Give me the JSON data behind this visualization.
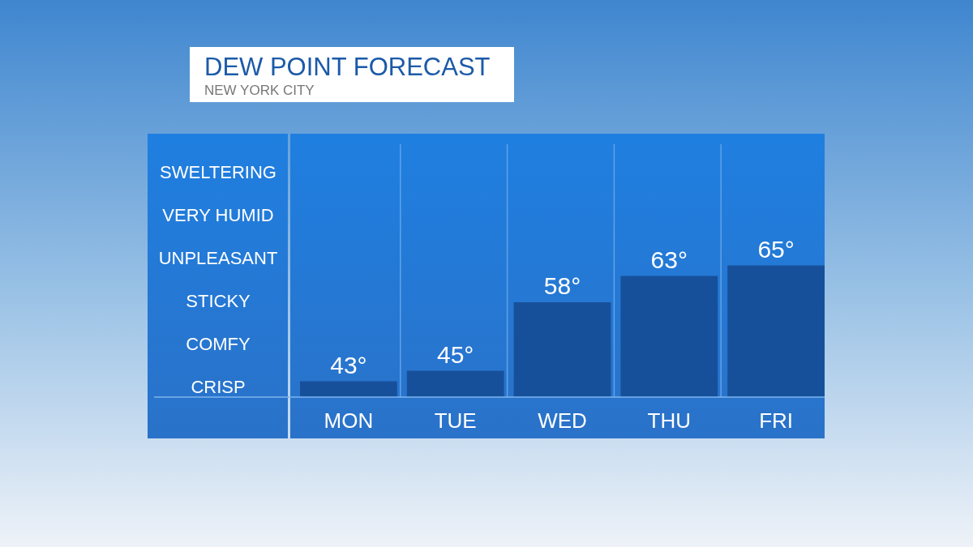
{
  "chart_data": {
    "type": "bar",
    "title": "DEW POINT FORECAST",
    "subtitle": "NEW YORK CITY",
    "categories": [
      "MON",
      "TUE",
      "WED",
      "THU",
      "FRI"
    ],
    "values": [
      43,
      45,
      58,
      63,
      65
    ],
    "value_labels": [
      "43°",
      "45°",
      "58°",
      "63°",
      "65°"
    ],
    "color": "#17509a",
    "ylim": [
      40,
      88
    ],
    "annotations": [
      "SWELTERING",
      "VERY HUMID",
      "UNPLEASANT",
      "STICKY",
      "COMFY",
      "CRISP"
    ],
    "grid": "x"
  }
}
